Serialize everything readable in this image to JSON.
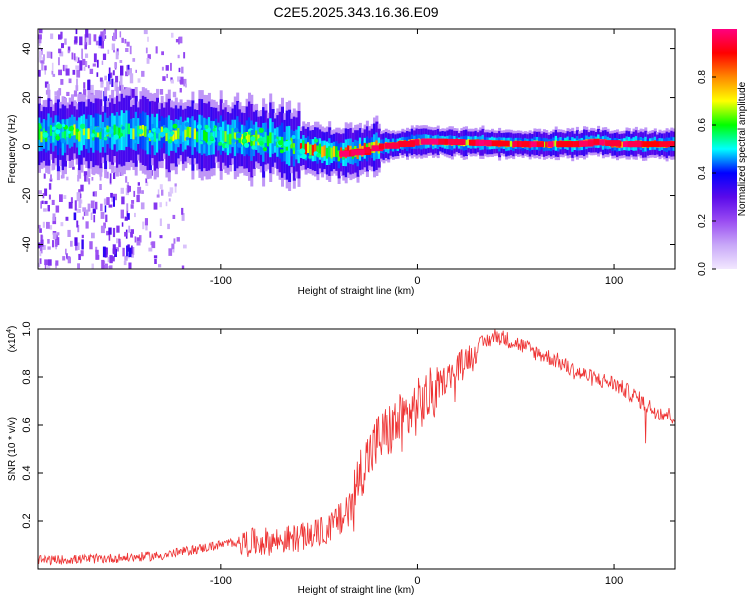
{
  "title": "C2E5.2025.343.16.36.E09",
  "chart_data": [
    {
      "type": "heatmap",
      "name": "spectrogram",
      "xlabel": "Height of straight line (km)",
      "ylabel": "Frequency (Hz)",
      "xlim": [
        -193,
        131
      ],
      "ylim": [
        -50,
        48
      ],
      "xticks": [
        -100,
        0,
        100
      ],
      "xtick_labels": [
        "-100",
        "0",
        "100"
      ],
      "yticks": [
        -40,
        -20,
        0,
        20,
        40
      ],
      "ytick_labels": [
        "-40",
        "-20",
        "0",
        "20",
        "40"
      ],
      "ridge": {
        "x": [
          -193,
          -150,
          -110,
          -80,
          -60,
          -40,
          -30,
          -20,
          -10,
          0,
          10,
          50,
          80,
          90,
          100,
          131
        ],
        "frequency": [
          5,
          6,
          5,
          3,
          0,
          -3,
          -2,
          0,
          1,
          2,
          2,
          1,
          1,
          2,
          1,
          1
        ]
      },
      "colorbar": {
        "label": "Normalized spectral amplitude",
        "range": [
          0.0,
          1.0
        ],
        "ticks": [
          0.0,
          0.2,
          0.4,
          0.6,
          0.8
        ],
        "tick_labels": [
          "0.0",
          "0.2",
          "0.4",
          "0.6",
          "0.8"
        ],
        "colors": [
          "#f2e8ff",
          "#c8a8f8",
          "#9a4cf2",
          "#5a0aea",
          "#0000ff",
          "#00ffff",
          "#00ff00",
          "#ffff00",
          "#ff8800",
          "#ff0000",
          "#ff0080"
        ]
      }
    },
    {
      "type": "line",
      "name": "snr",
      "xlabel": "Height of straight line (km)",
      "ylabel": "SNR (10 * v/v)",
      "y_multiplier": "(x10",
      "y_multiplier_exp": "4",
      "y_multiplier_close": ")",
      "xlim": [
        -193,
        131
      ],
      "ylim": [
        0.0,
        1.0
      ],
      "xticks": [
        -100,
        0,
        100
      ],
      "xtick_labels": [
        "-100",
        "0",
        "100"
      ],
      "yticks": [
        0.2,
        0.4,
        0.6,
        0.8,
        1.0
      ],
      "ytick_labels": [
        "0.2",
        "0.4",
        "0.6",
        "0.8",
        "1.0"
      ],
      "line_color": "#ee3333",
      "envelope": {
        "x": [
          -193,
          -170,
          -150,
          -130,
          -110,
          -90,
          -70,
          -55,
          -45,
          -35,
          -28,
          -20,
          -10,
          0,
          10,
          20,
          30,
          40,
          50,
          60,
          70,
          80,
          90,
          100,
          110,
          115,
          120,
          131
        ],
        "snr": [
          0.04,
          0.045,
          0.05,
          0.06,
          0.09,
          0.12,
          0.13,
          0.15,
          0.18,
          0.27,
          0.45,
          0.56,
          0.63,
          0.7,
          0.77,
          0.85,
          0.93,
          0.98,
          0.95,
          0.91,
          0.88,
          0.83,
          0.8,
          0.78,
          0.73,
          0.7,
          0.67,
          0.64
        ]
      }
    }
  ]
}
